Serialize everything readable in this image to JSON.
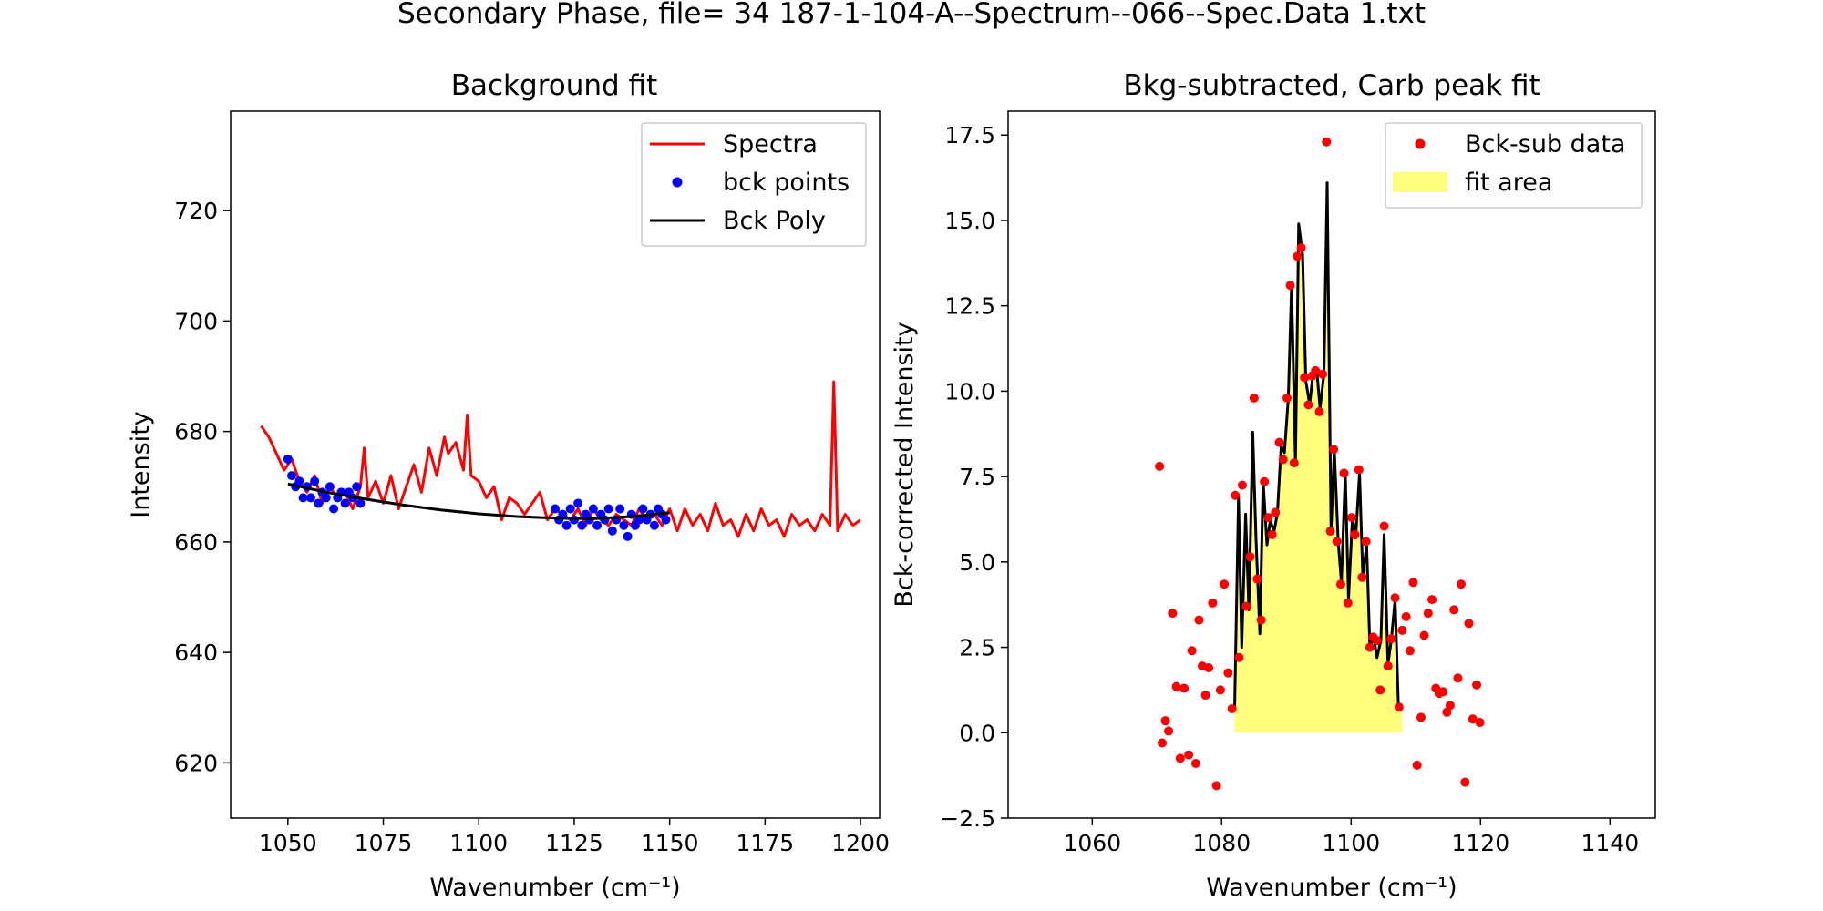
{
  "figure": {
    "suptitle": "Secondary Phase, file= 34 187-1-104-A--Spectrum--066--Spec.Data 1.txt"
  },
  "chart_data": [
    {
      "type": "line",
      "title": "Background fit",
      "xlabel": "Wavenumber (cm⁻¹)",
      "ylabel": "Intensity",
      "xlim": [
        1035,
        1205
      ],
      "ylim": [
        610,
        738
      ],
      "xticks": [
        1050,
        1075,
        1100,
        1125,
        1150,
        1175,
        1200
      ],
      "yticks": [
        620,
        640,
        660,
        680,
        700,
        720
      ],
      "grid": false,
      "legend_position": "top-right",
      "colors": {
        "Spectra": "#ff0000",
        "bck points": "#0000ff",
        "Bck Poly": "#000000"
      },
      "series": [
        {
          "name": "Spectra",
          "kind": "line",
          "x": [
            1043,
            1045,
            1047,
            1049,
            1051,
            1053,
            1055,
            1057,
            1059,
            1061,
            1063,
            1065,
            1067,
            1069,
            1070,
            1071,
            1073,
            1075,
            1077,
            1079,
            1081,
            1083,
            1085,
            1087,
            1089,
            1091,
            1092,
            1094,
            1096,
            1097,
            1098,
            1100,
            1102,
            1104,
            1106,
            1108,
            1110,
            1112,
            1114,
            1116,
            1118,
            1120,
            1122,
            1124,
            1126,
            1128,
            1130,
            1132,
            1134,
            1136,
            1138,
            1140,
            1142,
            1144,
            1146,
            1148,
            1150,
            1152,
            1154,
            1156,
            1158,
            1160,
            1162,
            1164,
            1166,
            1168,
            1170,
            1172,
            1174,
            1176,
            1178,
            1180,
            1182,
            1184,
            1186,
            1188,
            1190,
            1192,
            1193,
            1194,
            1196,
            1198,
            1200
          ],
          "y": [
            681,
            679,
            676,
            673,
            675,
            671,
            669,
            672,
            667,
            670,
            668,
            669,
            666,
            670,
            677,
            668,
            671,
            667,
            672,
            666,
            670,
            674,
            669,
            677,
            672,
            679,
            676,
            678,
            673,
            683,
            672,
            671,
            668,
            670,
            664,
            668,
            667,
            665,
            667,
            669,
            664,
            666,
            665,
            664,
            666,
            663,
            666,
            664,
            663,
            665,
            664,
            663,
            666,
            664,
            665,
            663,
            666,
            662,
            666,
            663,
            665,
            662,
            667,
            663,
            664,
            661,
            665,
            662,
            666,
            663,
            664,
            661,
            665,
            663,
            664,
            662,
            665,
            663,
            689,
            662,
            665,
            663,
            664
          ]
        },
        {
          "name": "bck points",
          "kind": "scatter",
          "x": [
            1050,
            1051,
            1052,
            1053,
            1054,
            1055,
            1056,
            1057,
            1058,
            1059,
            1060,
            1061,
            1062,
            1063,
            1064,
            1065,
            1066,
            1067,
            1068,
            1069,
            1120,
            1121,
            1122,
            1123,
            1124,
            1125,
            1126,
            1127,
            1128,
            1129,
            1130,
            1131,
            1132,
            1133,
            1134,
            1135,
            1136,
            1137,
            1138,
            1139,
            1140,
            1141,
            1142,
            1143,
            1144,
            1145,
            1146,
            1147,
            1148,
            1149
          ],
          "y": [
            675,
            672,
            670,
            671,
            668,
            670,
            668,
            671,
            667,
            669,
            668,
            670,
            666,
            668,
            669,
            667,
            669,
            668,
            670,
            667,
            666,
            664,
            665,
            663,
            666,
            664,
            667,
            663,
            665,
            664,
            666,
            663,
            665,
            664,
            666,
            662,
            664,
            666,
            663,
            661,
            665,
            663,
            664,
            666,
            664,
            665,
            663,
            666,
            665,
            664
          ]
        },
        {
          "name": "Bck Poly",
          "kind": "line",
          "x": [
            1050,
            1060,
            1070,
            1080,
            1090,
            1100,
            1110,
            1120,
            1130,
            1140,
            1150
          ],
          "y": [
            670.5,
            669,
            667.8,
            666.7,
            665.8,
            665.1,
            664.6,
            664.3,
            664.2,
            664.6,
            665.3
          ]
        }
      ]
    },
    {
      "type": "line",
      "title": "Bkg-subtracted, Carb peak fit",
      "xlabel": "Wavenumber (cm⁻¹)",
      "ylabel": "Bck-corrected Intensity",
      "xlim": [
        1047,
        1147
      ],
      "ylim": [
        -2.5,
        18.2
      ],
      "xticks": [
        1060,
        1080,
        1100,
        1120,
        1140
      ],
      "yticks": [
        -2.5,
        0.0,
        2.5,
        5.0,
        7.5,
        10.0,
        12.5,
        15.0,
        17.5
      ],
      "grid": false,
      "legend_position": "top-right",
      "colors": {
        "Bck-sub data": "#ff0000",
        "fit area": "#ffff66",
        "fit line": "#000000"
      },
      "series": [
        {
          "name": "Bck-sub data",
          "kind": "scatter",
          "x": [
            1070.4,
            1070.8,
            1071.3,
            1071.8,
            1072.4,
            1073.0,
            1073.6,
            1074.2,
            1074.9,
            1075.4,
            1076.0,
            1076.5,
            1077.0,
            1077.5,
            1078.0,
            1078.6,
            1079.2,
            1079.8,
            1080.4,
            1081.0,
            1081.6,
            1082.1,
            1082.7,
            1083.2,
            1083.8,
            1084.4,
            1085.0,
            1085.5,
            1086.1,
            1086.6,
            1087.2,
            1087.8,
            1088.3,
            1088.9,
            1089.5,
            1090.1,
            1090.6,
            1091.2,
            1091.7,
            1092.3,
            1092.8,
            1093.4,
            1094.0,
            1094.5,
            1095.1,
            1095.6,
            1096.2,
            1096.8,
            1097.3,
            1097.8,
            1098.4,
            1098.9,
            1099.5,
            1100.1,
            1100.6,
            1101.2,
            1101.7,
            1102.3,
            1102.9,
            1103.4,
            1104.0,
            1104.5,
            1105.1,
            1105.7,
            1106.2,
            1106.8,
            1107.4,
            1107.9,
            1108.5,
            1109.1,
            1109.6,
            1110.2,
            1110.8,
            1111.3,
            1111.9,
            1112.5,
            1113.1,
            1113.6,
            1114.2,
            1114.8,
            1115.3,
            1115.9,
            1116.5,
            1117.0,
            1117.6,
            1118.2,
            1118.8,
            1119.4,
            1119.9
          ],
          "y": [
            7.8,
            -0.3,
            0.35,
            0.05,
            3.5,
            1.35,
            -0.75,
            1.3,
            -0.65,
            2.4,
            -0.9,
            3.3,
            1.95,
            1.1,
            1.9,
            3.8,
            -1.55,
            1.25,
            4.35,
            1.75,
            0.7,
            6.95,
            2.2,
            7.25,
            3.7,
            5.15,
            9.8,
            4.5,
            3.3,
            7.35,
            6.3,
            5.8,
            6.45,
            8.5,
            8.0,
            9.8,
            13.1,
            7.9,
            13.95,
            14.2,
            10.4,
            9.6,
            10.45,
            10.6,
            9.4,
            10.5,
            17.3,
            5.9,
            8.3,
            5.6,
            4.35,
            7.6,
            3.8,
            6.3,
            5.8,
            7.7,
            4.55,
            5.6,
            2.5,
            2.8,
            2.7,
            1.25,
            6.05,
            1.95,
            2.75,
            3.95,
            0.75,
            3.0,
            3.4,
            2.4,
            4.4,
            -0.95,
            0.45,
            2.85,
            3.5,
            3.9,
            1.3,
            1.15,
            1.2,
            0.6,
            0.8,
            3.6,
            1.6,
            4.35,
            -1.45,
            3.2,
            0.4,
            1.4,
            0.3
          ]
        },
        {
          "name": "fit area",
          "kind": "area",
          "x": [
            1082.0,
            1082.6,
            1083.1,
            1083.7,
            1084.2,
            1084.8,
            1085.3,
            1085.9,
            1086.4,
            1087.0,
            1087.5,
            1088.1,
            1088.6,
            1089.2,
            1089.7,
            1090.3,
            1090.8,
            1091.4,
            1091.9,
            1092.5,
            1093.0,
            1093.6,
            1094.1,
            1094.7,
            1095.2,
            1095.8,
            1096.3,
            1096.9,
            1097.4,
            1098.0,
            1098.5,
            1099.1,
            1099.6,
            1100.2,
            1100.7,
            1101.3,
            1101.8,
            1102.4,
            1102.9,
            1103.5,
            1104.0,
            1104.6,
            1105.1,
            1105.7,
            1106.2,
            1106.8,
            1107.3,
            1107.9
          ],
          "y": [
            0.7,
            6.9,
            2.5,
            6.4,
            3.6,
            8.8,
            5.7,
            2.9,
            7.4,
            5.5,
            6.2,
            5.9,
            6.4,
            8.4,
            8.2,
            9.8,
            13.1,
            7.9,
            14.9,
            14.0,
            10.3,
            9.6,
            10.5,
            10.6,
            9.5,
            10.5,
            16.1,
            5.9,
            8.3,
            5.6,
            4.4,
            7.6,
            3.9,
            6.3,
            5.7,
            7.6,
            4.6,
            5.5,
            2.5,
            2.8,
            2.2,
            2.7,
            5.8,
            2.0,
            2.7,
            3.9,
            0.8,
            0.8
          ]
        }
      ]
    }
  ]
}
